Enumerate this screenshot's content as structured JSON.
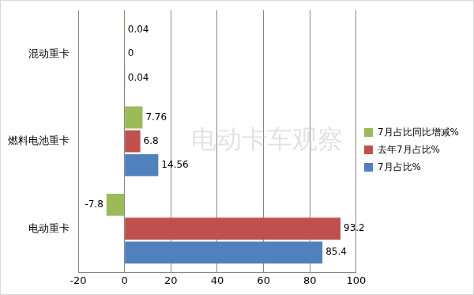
{
  "chart_data": {
    "type": "bar",
    "orientation": "horizontal",
    "categories": [
      "混动重卡",
      "燃料电池重卡",
      "电动重卡"
    ],
    "series": [
      {
        "name": "7月占比同比增减%",
        "color": "#9bbb59",
        "values": [
          0.04,
          7.76,
          -7.8
        ]
      },
      {
        "name": "去年7月占比%",
        "color": "#c0504d",
        "values": [
          0,
          6.8,
          93.2
        ]
      },
      {
        "name": "7月占比%",
        "color": "#4f81bd",
        "values": [
          0.04,
          14.56,
          85.4
        ]
      }
    ],
    "xlim": [
      -20,
      100
    ],
    "xticks": [
      -20,
      0,
      20,
      40,
      60,
      80,
      100
    ],
    "grid": true,
    "legend": "right",
    "data_labels": true,
    "watermark": "电动卡车观察"
  }
}
